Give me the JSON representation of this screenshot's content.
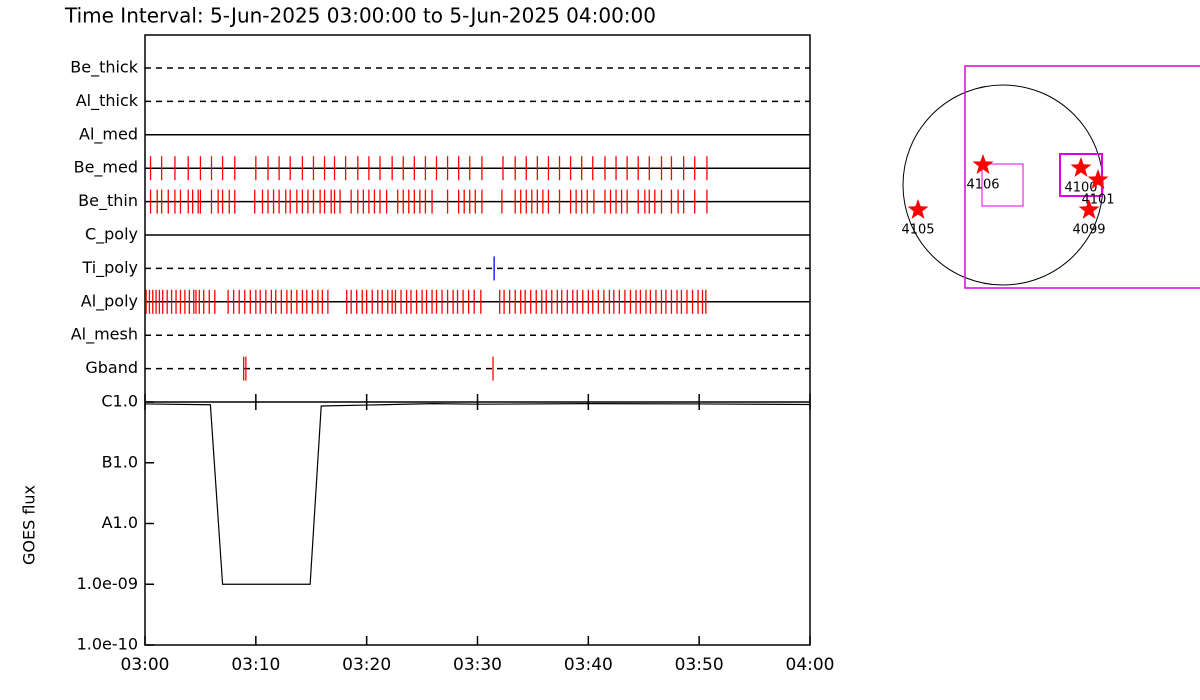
{
  "chart_data": [
    {
      "type": "timeline",
      "title": "Time Interval:  5-Jun-2025 03:00:00 to  5-Jun-2025 04:00:00",
      "xlim": [
        0,
        60
      ],
      "rows": [
        {
          "name": "Be_thick",
          "style": "dashed",
          "events": []
        },
        {
          "name": "Al_thick",
          "style": "dashed",
          "events": []
        },
        {
          "name": "Al_med",
          "style": "solid",
          "events": []
        },
        {
          "name": "Be_med",
          "style": "solid",
          "color": "#ff0000",
          "events": [
            0.5,
            1.5,
            2.7,
            3.9,
            5.0,
            6.0,
            7.0,
            8.1,
            10.0,
            11.1,
            12.1,
            13.1,
            14.2,
            15.2,
            16.2,
            17.1,
            18.1,
            19.2,
            20.2,
            21.2,
            22.3,
            23.3,
            24.3,
            25.3,
            26.3,
            27.3,
            28.3,
            29.3,
            30.4,
            32.3,
            33.4,
            34.4,
            35.4,
            36.4,
            37.4,
            38.4,
            39.4,
            40.4,
            41.5,
            42.5,
            43.5,
            44.5,
            45.5,
            46.6,
            47.5,
            48.6,
            49.6,
            50.7
          ]
        },
        {
          "name": "Be_thin",
          "style": "solid",
          "color": "#ff0000",
          "events": [
            0.5,
            1.1,
            1.5,
            2.1,
            2.7,
            3.2,
            3.9,
            4.3,
            4.8,
            5.0,
            6.0,
            6.6,
            7.0,
            7.6,
            8.1,
            9.9,
            10.6,
            11.1,
            11.6,
            12.1,
            12.7,
            13.1,
            13.7,
            14.2,
            14.7,
            15.2,
            15.8,
            16.2,
            16.8,
            17.1,
            17.6,
            18.6,
            19.2,
            19.7,
            20.2,
            20.7,
            21.2,
            21.8,
            22.8,
            23.3,
            23.8,
            24.3,
            24.8,
            25.3,
            25.9,
            27.3,
            28.3,
            28.8,
            29.3,
            29.8,
            30.4,
            32.2,
            33.4,
            33.9,
            34.4,
            34.9,
            35.4,
            35.9,
            36.4,
            37.4,
            38.4,
            38.9,
            39.4,
            39.9,
            40.5,
            41.5,
            42.0,
            42.5,
            43.0,
            43.5,
            44.5,
            45.1,
            45.5,
            46.0,
            46.6,
            47.5,
            48.1,
            48.6,
            49.6,
            50.7
          ]
        },
        {
          "name": "C_poly",
          "style": "solid",
          "events": []
        },
        {
          "name": "Ti_poly",
          "style": "dashed",
          "color": "#0000ff",
          "events": [
            31.5
          ]
        },
        {
          "name": "Al_poly",
          "style": "solid",
          "color": "#ff0000",
          "events": [
            0.1,
            0.4,
            0.7,
            1.0,
            1.3,
            1.6,
            2.0,
            2.4,
            2.8,
            3.2,
            3.6,
            4.0,
            4.4,
            4.6,
            4.9,
            5.3,
            5.8,
            6.3,
            7.5,
            8.0,
            8.5,
            9.0,
            9.5,
            10.0,
            10.4,
            10.9,
            11.4,
            11.8,
            12.3,
            12.8,
            13.2,
            13.7,
            14.2,
            14.6,
            15.1,
            15.6,
            16.0,
            16.5,
            18.2,
            18.6,
            19.1,
            19.6,
            20.0,
            20.5,
            21.0,
            21.4,
            21.9,
            22.3,
            22.6,
            23.1,
            23.6,
            24.0,
            24.5,
            25.0,
            25.4,
            25.9,
            26.3,
            26.8,
            27.3,
            27.8,
            28.2,
            28.7,
            29.2,
            29.7,
            30.3,
            32.0,
            32.4,
            32.9,
            33.4,
            33.9,
            34.3,
            34.8,
            35.3,
            35.8,
            36.2,
            36.7,
            37.2,
            37.6,
            38.1,
            38.6,
            39.0,
            39.5,
            40.0,
            40.4,
            40.9,
            41.4,
            41.9,
            42.3,
            42.8,
            43.3,
            43.8,
            44.3,
            44.7,
            45.2,
            45.6,
            46.1,
            46.6,
            47.0,
            47.5,
            48.0,
            48.4,
            48.9,
            49.4,
            49.9,
            50.3,
            50.6
          ]
        },
        {
          "name": "Al_mesh",
          "style": "dashed",
          "events": []
        },
        {
          "name": "Gband",
          "style": "dashed",
          "color": "#ff0000",
          "events": [
            8.9,
            9.1,
            31.4
          ]
        }
      ]
    },
    {
      "type": "line",
      "ylabel": "GOES flux",
      "log": true,
      "color": "#000000",
      "x": [
        0,
        5.9,
        7.0,
        14.9,
        15.9,
        20,
        26,
        30,
        40,
        50,
        60
      ],
      "values": [
        9.3e-07,
        9e-07,
        1e-09,
        1e-09,
        8.6e-07,
        8.9e-07,
        9.4e-07,
        9.2e-07,
        9.4e-07,
        9.3e-07,
        9.1e-07
      ],
      "xlim": [
        0,
        60
      ],
      "xticks": [
        {
          "value": 0,
          "label": "03:00"
        },
        {
          "value": 10,
          "label": "03:10"
        },
        {
          "value": 20,
          "label": "03:20"
        },
        {
          "value": 30,
          "label": "03:30"
        },
        {
          "value": 40,
          "label": "03:40"
        },
        {
          "value": 50,
          "label": "03:50"
        },
        {
          "value": 60,
          "label": "04:00"
        }
      ],
      "ylim": [
        1e-10,
        1e-06
      ],
      "yticks": [
        {
          "value": 1e-06,
          "label": "C1.0"
        },
        {
          "value": 1e-07,
          "label": "B1.0"
        },
        {
          "value": 1e-08,
          "label": "A1.0"
        },
        {
          "value": 1e-09,
          "label": "1.0e-09"
        },
        {
          "value": 1e-10,
          "label": "1.0e-10"
        }
      ]
    },
    {
      "type": "map",
      "color": "#ff0000",
      "points": [
        {
          "label": "4106",
          "x": -189,
          "y": 189
        },
        {
          "label": "4100",
          "x": 737,
          "y": 161
        },
        {
          "label": "4101",
          "x": 898,
          "y": 47
        },
        {
          "label": "4105",
          "x": -803,
          "y": -236
        },
        {
          "label": "4099",
          "x": 813,
          "y": -236
        }
      ]
    }
  ]
}
